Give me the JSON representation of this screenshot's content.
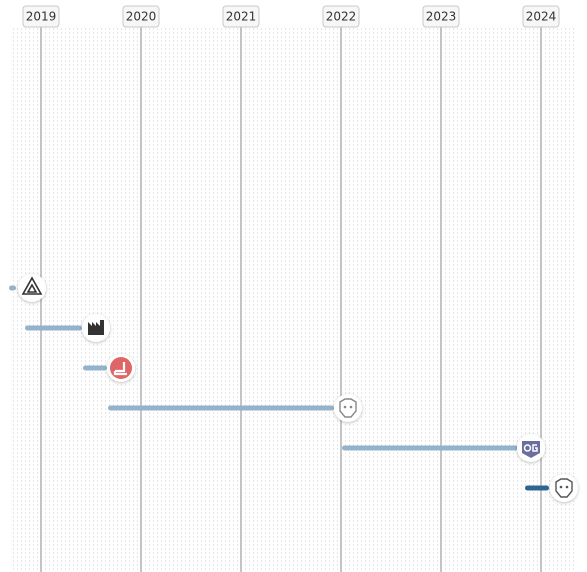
{
  "timeline": {
    "years": [
      "2019",
      "2020",
      "2021",
      "2022",
      "2023",
      "2024"
    ]
  }
}
